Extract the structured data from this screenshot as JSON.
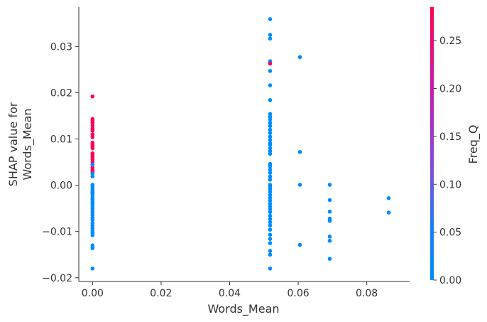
{
  "chart_data": {
    "type": "scatter",
    "xlabel": "Words_Mean",
    "ylabel": [
      "SHAP value for",
      "Words_Mean"
    ],
    "xlim": [
      -0.004,
      0.0925
    ],
    "ylim": [
      -0.0208,
      0.0385
    ],
    "xticks": [
      0.0,
      0.02,
      0.04,
      0.06,
      0.08
    ],
    "xtick_labels": [
      "0.00",
      "0.02",
      "0.04",
      "0.06",
      "0.08"
    ],
    "yticks": [
      -0.02,
      -0.01,
      0.0,
      0.01,
      0.02,
      0.03
    ],
    "ytick_labels": [
      "−0.02",
      "−0.01",
      "0.00",
      "0.01",
      "0.02",
      "0.03"
    ],
    "grid": false,
    "colorbar": {
      "label": "Freq_Q",
      "range": [
        0.0,
        0.285
      ],
      "ticks": [
        0.0,
        0.05,
        0.1,
        0.15,
        0.2,
        0.25
      ],
      "tick_labels": [
        "0.00",
        "0.05",
        "0.10",
        "0.15",
        "0.20",
        "0.25"
      ],
      "low_color": "#008bfb",
      "high_color": "#ff0052"
    },
    "points": [
      {
        "x": 0.0,
        "y": 0.0192,
        "c": 0.28
      },
      {
        "x": 0.0,
        "y": 0.0143,
        "c": 0.28
      },
      {
        "x": 0.0,
        "y": 0.014,
        "c": 0.28
      },
      {
        "x": 0.0,
        "y": 0.0135,
        "c": 0.28
      },
      {
        "x": 0.0,
        "y": 0.0128,
        "c": 0.28
      },
      {
        "x": 0.0,
        "y": 0.0122,
        "c": 0.28
      },
      {
        "x": 0.0,
        "y": 0.0118,
        "c": 0.28
      },
      {
        "x": 0.0,
        "y": 0.011,
        "c": 0.28
      },
      {
        "x": 0.0,
        "y": 0.0104,
        "c": 0.28
      },
      {
        "x": 0.0,
        "y": 0.0092,
        "c": 0.28
      },
      {
        "x": 0.0,
        "y": 0.0088,
        "c": 0.28
      },
      {
        "x": 0.0,
        "y": 0.0084,
        "c": 0.28
      },
      {
        "x": 0.0,
        "y": 0.008,
        "c": 0.28
      },
      {
        "x": 0.0,
        "y": 0.0069,
        "c": 0.28
      },
      {
        "x": 0.0,
        "y": 0.0065,
        "c": 0.28
      },
      {
        "x": 0.0,
        "y": 0.0061,
        "c": 0.28
      },
      {
        "x": 0.0,
        "y": 0.0056,
        "c": 0.28
      },
      {
        "x": 0.0,
        "y": 0.005,
        "c": 0.28
      },
      {
        "x": 0.0,
        "y": 0.0045,
        "c": 0.28
      },
      {
        "x": 0.0,
        "y": 0.0038,
        "c": 0.28
      },
      {
        "x": 0.0,
        "y": 0.0033,
        "c": 0.28
      },
      {
        "x": 0.0,
        "y": 0.0028,
        "c": 0.28
      },
      {
        "x": 0.0,
        "y": 0.0045,
        "c": 0.0
      },
      {
        "x": 0.0,
        "y": 0.0025,
        "c": 0.0
      },
      {
        "x": 0.0,
        "y": 0.0019,
        "c": 0.0
      },
      {
        "x": 0.0,
        "y": -0.0015,
        "c": 0.2
      },
      {
        "x": 0.0,
        "y": 0.0001,
        "c": 0.0
      },
      {
        "x": 0.0,
        "y": -0.0003,
        "c": 0.0
      },
      {
        "x": 0.0,
        "y": -0.0008,
        "c": 0.0
      },
      {
        "x": 0.0,
        "y": -0.0012,
        "c": 0.0
      },
      {
        "x": 0.0,
        "y": -0.0018,
        "c": 0.0
      },
      {
        "x": 0.0,
        "y": -0.0022,
        "c": 0.0
      },
      {
        "x": 0.0,
        "y": -0.0027,
        "c": 0.0
      },
      {
        "x": 0.0,
        "y": -0.0031,
        "c": 0.0
      },
      {
        "x": 0.0,
        "y": -0.0036,
        "c": 0.0
      },
      {
        "x": 0.0,
        "y": -0.004,
        "c": 0.0
      },
      {
        "x": 0.0,
        "y": -0.0045,
        "c": 0.0
      },
      {
        "x": 0.0,
        "y": -0.005,
        "c": 0.0
      },
      {
        "x": 0.0,
        "y": -0.0055,
        "c": 0.0
      },
      {
        "x": 0.0,
        "y": -0.006,
        "c": 0.0
      },
      {
        "x": 0.0,
        "y": -0.0065,
        "c": 0.0
      },
      {
        "x": 0.0,
        "y": -0.007,
        "c": 0.0
      },
      {
        "x": 0.0,
        "y": -0.0075,
        "c": 0.0
      },
      {
        "x": 0.0,
        "y": -0.0082,
        "c": 0.0
      },
      {
        "x": 0.0,
        "y": -0.0088,
        "c": 0.0
      },
      {
        "x": 0.0,
        "y": -0.0093,
        "c": 0.0
      },
      {
        "x": 0.0,
        "y": -0.0098,
        "c": 0.0
      },
      {
        "x": 0.0,
        "y": -0.0103,
        "c": 0.0
      },
      {
        "x": 0.0,
        "y": -0.0108,
        "c": 0.0
      },
      {
        "x": 0.0,
        "y": -0.013,
        "c": 0.0
      },
      {
        "x": 0.0,
        "y": -0.0136,
        "c": 0.0
      },
      {
        "x": 0.0,
        "y": -0.018,
        "c": 0.0
      },
      {
        "x": 0.0518,
        "y": 0.0359,
        "c": 0.0
      },
      {
        "x": 0.0518,
        "y": 0.0325,
        "c": 0.0
      },
      {
        "x": 0.0518,
        "y": 0.0317,
        "c": 0.0
      },
      {
        "x": 0.0518,
        "y": 0.0268,
        "c": 0.0
      },
      {
        "x": 0.0518,
        "y": 0.0263,
        "c": 0.28
      },
      {
        "x": 0.0518,
        "y": 0.0247,
        "c": 0.0
      },
      {
        "x": 0.0518,
        "y": 0.0216,
        "c": 0.0
      },
      {
        "x": 0.0518,
        "y": 0.0184,
        "c": 0.0
      },
      {
        "x": 0.0518,
        "y": 0.0154,
        "c": 0.0
      },
      {
        "x": 0.0518,
        "y": 0.0148,
        "c": 0.0
      },
      {
        "x": 0.0518,
        "y": 0.0142,
        "c": 0.0
      },
      {
        "x": 0.0518,
        "y": 0.0135,
        "c": 0.0
      },
      {
        "x": 0.0518,
        "y": 0.0128,
        "c": 0.0
      },
      {
        "x": 0.0518,
        "y": 0.012,
        "c": 0.0
      },
      {
        "x": 0.0518,
        "y": 0.0113,
        "c": 0.0
      },
      {
        "x": 0.0518,
        "y": 0.0105,
        "c": 0.0
      },
      {
        "x": 0.0518,
        "y": 0.0098,
        "c": 0.0
      },
      {
        "x": 0.0518,
        "y": 0.0091,
        "c": 0.0
      },
      {
        "x": 0.0518,
        "y": 0.0087,
        "c": 0.0
      },
      {
        "x": 0.0518,
        "y": 0.008,
        "c": 0.0
      },
      {
        "x": 0.0518,
        "y": 0.0074,
        "c": 0.0
      },
      {
        "x": 0.0518,
        "y": 0.0068,
        "c": 0.0
      },
      {
        "x": 0.0518,
        "y": 0.0046,
        "c": 0.0
      },
      {
        "x": 0.0518,
        "y": 0.0041,
        "c": 0.0
      },
      {
        "x": 0.0518,
        "y": 0.0034,
        "c": 0.0
      },
      {
        "x": 0.0518,
        "y": 0.0027,
        "c": 0.0
      },
      {
        "x": 0.0518,
        "y": 0.0019,
        "c": 0.0
      },
      {
        "x": 0.0518,
        "y": 0.0012,
        "c": 0.0
      },
      {
        "x": 0.0518,
        "y": 0.0001,
        "c": 0.0
      },
      {
        "x": 0.0518,
        "y": -0.0003,
        "c": 0.0
      },
      {
        "x": 0.0518,
        "y": -0.0008,
        "c": 0.0
      },
      {
        "x": 0.0518,
        "y": -0.0014,
        "c": 0.0
      },
      {
        "x": 0.0518,
        "y": -0.0021,
        "c": 0.0
      },
      {
        "x": 0.0518,
        "y": -0.0027,
        "c": 0.0
      },
      {
        "x": 0.0518,
        "y": -0.0033,
        "c": 0.0
      },
      {
        "x": 0.0518,
        "y": -0.004,
        "c": 0.0
      },
      {
        "x": 0.0518,
        "y": -0.0046,
        "c": 0.0
      },
      {
        "x": 0.0518,
        "y": -0.0052,
        "c": 0.0
      },
      {
        "x": 0.0518,
        "y": -0.0058,
        "c": 0.0
      },
      {
        "x": 0.0518,
        "y": -0.0066,
        "c": 0.0
      },
      {
        "x": 0.0518,
        "y": -0.0073,
        "c": 0.0
      },
      {
        "x": 0.0518,
        "y": -0.008,
        "c": 0.0
      },
      {
        "x": 0.0518,
        "y": -0.0087,
        "c": 0.0
      },
      {
        "x": 0.0518,
        "y": -0.0096,
        "c": 0.0
      },
      {
        "x": 0.0518,
        "y": -0.0107,
        "c": 0.0
      },
      {
        "x": 0.0518,
        "y": -0.0116,
        "c": 0.0
      },
      {
        "x": 0.0518,
        "y": -0.0125,
        "c": 0.0
      },
      {
        "x": 0.0518,
        "y": -0.0142,
        "c": 0.0
      },
      {
        "x": 0.0518,
        "y": -0.015,
        "c": 0.0
      },
      {
        "x": 0.0518,
        "y": -0.018,
        "c": 0.0
      },
      {
        "x": 0.0605,
        "y": 0.0277,
        "c": 0.0
      },
      {
        "x": 0.0605,
        "y": 0.0072,
        "c": 0.0
      },
      {
        "x": 0.0605,
        "y": 0.0001,
        "c": 0.0
      },
      {
        "x": 0.0605,
        "y": -0.0129,
        "c": 0.0
      },
      {
        "x": 0.0692,
        "y": 0.0001,
        "c": 0.0
      },
      {
        "x": 0.0692,
        "y": -0.0032,
        "c": 0.0
      },
      {
        "x": 0.0692,
        "y": -0.0057,
        "c": 0.0
      },
      {
        "x": 0.0692,
        "y": -0.0072,
        "c": 0.0
      },
      {
        "x": 0.0692,
        "y": -0.0077,
        "c": 0.0
      },
      {
        "x": 0.0692,
        "y": -0.0111,
        "c": 0.0
      },
      {
        "x": 0.0692,
        "y": -0.012,
        "c": 0.0
      },
      {
        "x": 0.0692,
        "y": -0.0159,
        "c": 0.0
      },
      {
        "x": 0.0864,
        "y": -0.0028,
        "c": 0.0
      },
      {
        "x": 0.0864,
        "y": -0.0059,
        "c": 0.0
      }
    ]
  }
}
